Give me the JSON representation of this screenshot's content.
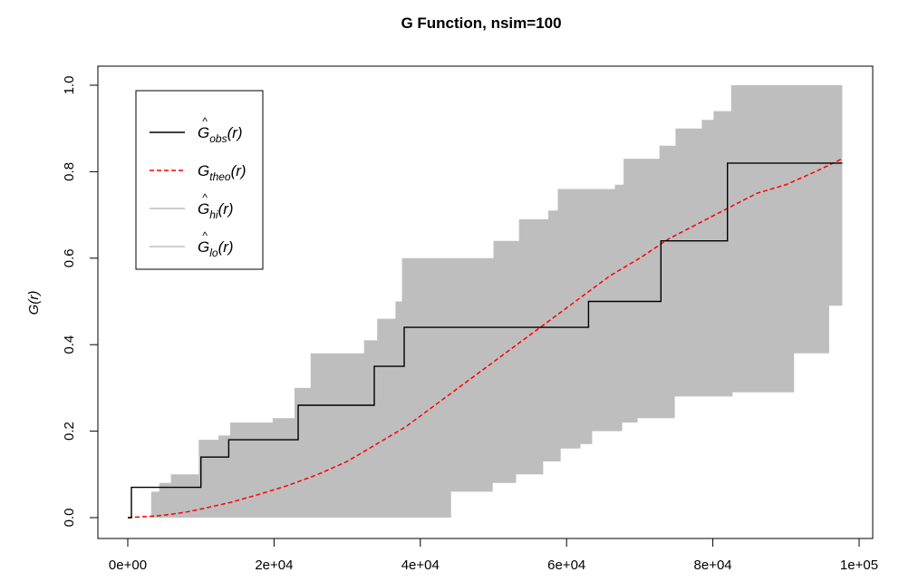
{
  "chart_data": {
    "type": "line",
    "title": "G Function, nsim=100",
    "xlabel": "",
    "ylabel": "G(r)",
    "xlim": [
      0,
      100000
    ],
    "ylim": [
      0,
      1
    ],
    "x_ticks": [
      {
        "value": 0,
        "label": "0e+00"
      },
      {
        "value": 20000,
        "label": "2e+04"
      },
      {
        "value": 40000,
        "label": "4e+04"
      },
      {
        "value": 60000,
        "label": "6e+04"
      },
      {
        "value": 80000,
        "label": "8e+04"
      },
      {
        "value": 100000,
        "label": "1e+05"
      }
    ],
    "y_ticks": [
      {
        "value": 0.0,
        "label": "0.0"
      },
      {
        "value": 0.2,
        "label": "0.2"
      },
      {
        "value": 0.4,
        "label": "0.4"
      },
      {
        "value": 0.6,
        "label": "0.6"
      },
      {
        "value": 0.8,
        "label": "0.8"
      },
      {
        "value": 1.0,
        "label": "1.0"
      }
    ],
    "legend": {
      "placement": "top-left",
      "entries": [
        {
          "name": "G",
          "sub": "obs",
          "hat": true,
          "color": "#000000",
          "dash": false
        },
        {
          "name": "G",
          "sub": "theo",
          "hat": false,
          "color": "#ff0000",
          "dash": true
        },
        {
          "name": "G",
          "sub": "hi",
          "hat": true,
          "color": "#bebebe",
          "dash": false
        },
        {
          "name": "G",
          "sub": "lo",
          "hat": true,
          "color": "#bebebe",
          "dash": false
        }
      ]
    },
    "envelope_color": "#bebebe",
    "series": [
      {
        "name": "obs",
        "step": true,
        "color": "#000000",
        "points": [
          [
            0,
            0
          ],
          [
            500,
            0
          ],
          [
            500,
            0.07
          ],
          [
            10000,
            0.07
          ],
          [
            10000,
            0.14
          ],
          [
            13800,
            0.14
          ],
          [
            13800,
            0.18
          ],
          [
            23300,
            0.18
          ],
          [
            23300,
            0.26
          ],
          [
            33700,
            0.26
          ],
          [
            33700,
            0.35
          ],
          [
            37800,
            0.35
          ],
          [
            37800,
            0.44
          ],
          [
            63000,
            0.44
          ],
          [
            63000,
            0.5
          ],
          [
            72900,
            0.5
          ],
          [
            72900,
            0.64
          ],
          [
            82000,
            0.64
          ],
          [
            82000,
            0.82
          ],
          [
            97700,
            0.82
          ]
        ]
      },
      {
        "name": "theo",
        "step": false,
        "color": "#ff0000",
        "points": [
          [
            0,
            0
          ],
          [
            2000,
            0.002
          ],
          [
            4000,
            0.004
          ],
          [
            6000,
            0.008
          ],
          [
            8000,
            0.013
          ],
          [
            10000,
            0.02
          ],
          [
            14000,
            0.035
          ],
          [
            18000,
            0.054
          ],
          [
            22000,
            0.075
          ],
          [
            26000,
            0.1
          ],
          [
            30000,
            0.13
          ],
          [
            34000,
            0.17
          ],
          [
            38000,
            0.21
          ],
          [
            42000,
            0.26
          ],
          [
            46000,
            0.31
          ],
          [
            50000,
            0.36
          ],
          [
            54000,
            0.41
          ],
          [
            58000,
            0.46
          ],
          [
            62000,
            0.51
          ],
          [
            66000,
            0.56
          ],
          [
            70000,
            0.6
          ],
          [
            74000,
            0.645
          ],
          [
            78000,
            0.68
          ],
          [
            82000,
            0.715
          ],
          [
            86000,
            0.75
          ],
          [
            90000,
            0.77
          ],
          [
            94000,
            0.8
          ],
          [
            97700,
            0.83
          ]
        ]
      },
      {
        "name": "hi",
        "step": true,
        "color": "#bebebe",
        "points": [
          [
            0,
            0
          ],
          [
            3200,
            0
          ],
          [
            3200,
            0.06
          ],
          [
            4300,
            0.06
          ],
          [
            4300,
            0.08
          ],
          [
            5900,
            0.08
          ],
          [
            5900,
            0.1
          ],
          [
            9700,
            0.1
          ],
          [
            9700,
            0.18
          ],
          [
            12400,
            0.18
          ],
          [
            12400,
            0.19
          ],
          [
            14000,
            0.19
          ],
          [
            14000,
            0.22
          ],
          [
            19800,
            0.22
          ],
          [
            19800,
            0.23
          ],
          [
            22800,
            0.23
          ],
          [
            22800,
            0.3
          ],
          [
            25000,
            0.3
          ],
          [
            25000,
            0.38
          ],
          [
            32300,
            0.38
          ],
          [
            32300,
            0.41
          ],
          [
            34100,
            0.41
          ],
          [
            34100,
            0.46
          ],
          [
            36600,
            0.46
          ],
          [
            36600,
            0.5
          ],
          [
            37500,
            0.5
          ],
          [
            37500,
            0.6
          ],
          [
            50000,
            0.6
          ],
          [
            50000,
            0.64
          ],
          [
            53500,
            0.64
          ],
          [
            53500,
            0.69
          ],
          [
            57500,
            0.69
          ],
          [
            57500,
            0.71
          ],
          [
            58800,
            0.71
          ],
          [
            58800,
            0.76
          ],
          [
            66600,
            0.76
          ],
          [
            66600,
            0.77
          ],
          [
            67800,
            0.77
          ],
          [
            67800,
            0.83
          ],
          [
            72700,
            0.83
          ],
          [
            72700,
            0.86
          ],
          [
            74900,
            0.86
          ],
          [
            74900,
            0.9
          ],
          [
            78500,
            0.9
          ],
          [
            78500,
            0.92
          ],
          [
            80100,
            0.92
          ],
          [
            80100,
            0.94
          ],
          [
            82500,
            0.94
          ],
          [
            82500,
            1.0
          ],
          [
            97700,
            1.0
          ]
        ]
      },
      {
        "name": "lo",
        "step": true,
        "color": "#bebebe",
        "points": [
          [
            0,
            0
          ],
          [
            44200,
            0
          ],
          [
            44200,
            0.06
          ],
          [
            49900,
            0.06
          ],
          [
            49900,
            0.08
          ],
          [
            53100,
            0.08
          ],
          [
            53100,
            0.1
          ],
          [
            56800,
            0.1
          ],
          [
            56800,
            0.13
          ],
          [
            59200,
            0.13
          ],
          [
            59200,
            0.16
          ],
          [
            61900,
            0.16
          ],
          [
            61900,
            0.17
          ],
          [
            63500,
            0.17
          ],
          [
            63500,
            0.2
          ],
          [
            67600,
            0.2
          ],
          [
            67600,
            0.22
          ],
          [
            69700,
            0.22
          ],
          [
            69700,
            0.23
          ],
          [
            74800,
            0.23
          ],
          [
            74800,
            0.28
          ],
          [
            82700,
            0.28
          ],
          [
            82700,
            0.29
          ],
          [
            91100,
            0.29
          ],
          [
            91100,
            0.38
          ],
          [
            95900,
            0.38
          ],
          [
            95900,
            0.49
          ],
          [
            97700,
            0.49
          ]
        ]
      }
    ]
  }
}
